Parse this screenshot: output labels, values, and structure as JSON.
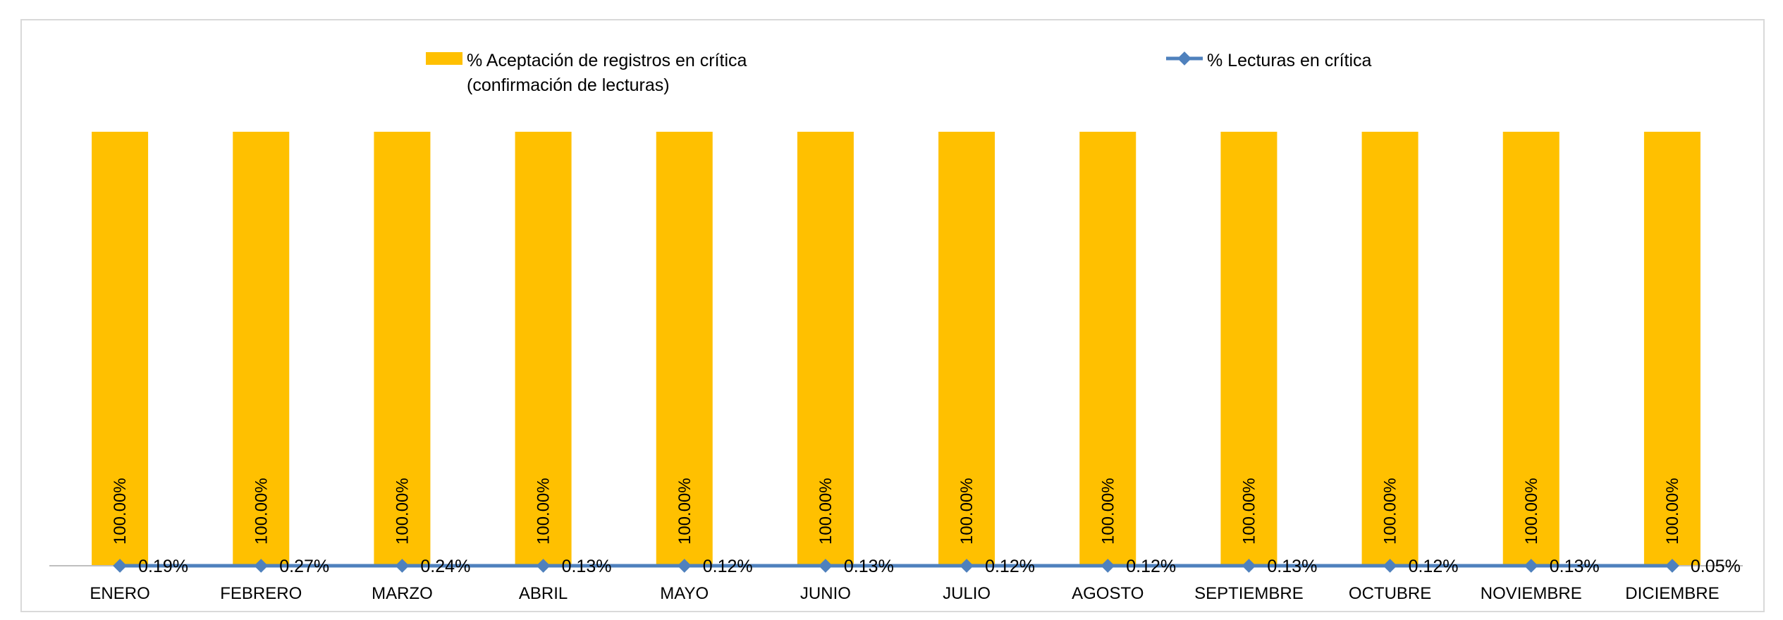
{
  "chart_data": {
    "type": "bar",
    "categories": [
      "ENERO",
      "FEBRERO",
      "MARZO",
      "ABRIL",
      "MAYO",
      "JUNIO",
      "JULIO",
      "AGOSTO",
      "SEPTIEMBRE",
      "OCTUBRE",
      "NOVIEMBRE",
      "DICIEMBRE"
    ],
    "series": [
      {
        "name": "% Aceptación de registros en crítica (confirmación de lecturas)",
        "kind": "bar",
        "color": "#FFC000",
        "values": [
          100,
          100,
          100,
          100,
          100,
          100,
          100,
          100,
          100,
          100,
          100,
          100
        ],
        "labels": [
          "100.00%",
          "100.00%",
          "100.00%",
          "100.00%",
          "100.00%",
          "100.00%",
          "100.00%",
          "100.00%",
          "100.00%",
          "100.00%",
          "100.00%",
          "100.00%"
        ]
      },
      {
        "name": "% Lecturas en crítica",
        "kind": "line",
        "color": "#4F81BD",
        "values": [
          0.19,
          0.27,
          0.24,
          0.13,
          0.12,
          0.13,
          0.12,
          0.12,
          0.13,
          0.12,
          0.13,
          0.05
        ],
        "labels": [
          "0.19%",
          "0.27%",
          "0.24%",
          "0.13%",
          "0.12%",
          "0.13%",
          "0.12%",
          "0.12%",
          "0.13%",
          "0.12%",
          "0.13%",
          "0.05%"
        ]
      }
    ],
    "legend": {
      "position": "top",
      "bar_label_line1": "% Aceptación de registros en crítica",
      "bar_label_line2": "(confirmación de lecturas)",
      "line_label": "% Lecturas en crítica"
    },
    "ylim": [
      0,
      100
    ],
    "grid": false
  }
}
